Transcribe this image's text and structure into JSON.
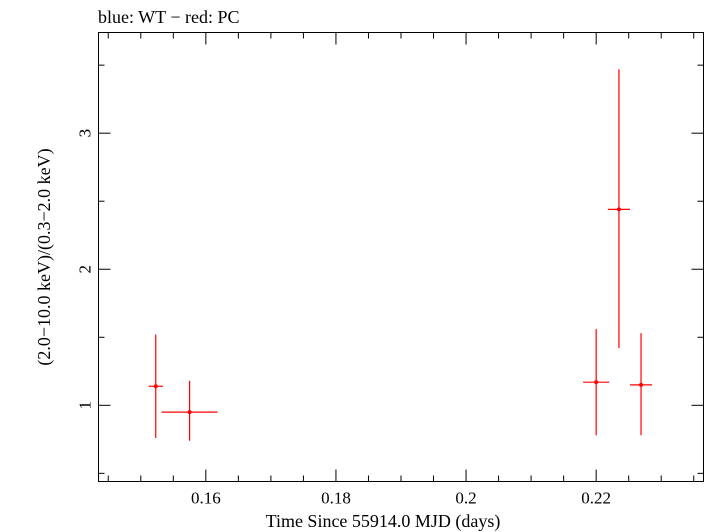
{
  "chart_data": {
    "type": "scatter",
    "title": "blue: WT − red: PC",
    "xlabel": "Time Since 55914.0 MJD (days)",
    "ylabel": "(2.0−10.0 keV)/(0.3−2.0 keV)",
    "xlim": [
      0.1435,
      0.2365
    ],
    "ylim": [
      0.44,
      3.74
    ],
    "x_ticks": [
      0.16,
      0.18,
      0.2,
      0.22
    ],
    "x_tick_labels": [
      "0.16",
      "0.18",
      "0.2",
      "0.22"
    ],
    "y_ticks": [
      1,
      2,
      3
    ],
    "y_tick_labels": [
      "1",
      "2",
      "3"
    ],
    "grid": false,
    "series": [
      {
        "name": "PC",
        "color": "#ff0000",
        "points": [
          {
            "x": 0.1523,
            "y": 1.14,
            "xerr": 0.0011,
            "ylo": 0.76,
            "yhi": 1.52
          },
          {
            "x": 0.1575,
            "y": 0.95,
            "xerr": 0.0043,
            "ylo": 0.74,
            "yhi": 1.18
          },
          {
            "x": 0.22,
            "y": 1.17,
            "xerr": 0.002,
            "ylo": 0.78,
            "yhi": 1.56
          },
          {
            "x": 0.2235,
            "y": 2.44,
            "xerr": 0.0017,
            "ylo": 1.42,
            "yhi": 3.47
          },
          {
            "x": 0.2269,
            "y": 1.15,
            "xerr": 0.0017,
            "ylo": 0.78,
            "yhi": 1.53
          }
        ]
      }
    ]
  }
}
